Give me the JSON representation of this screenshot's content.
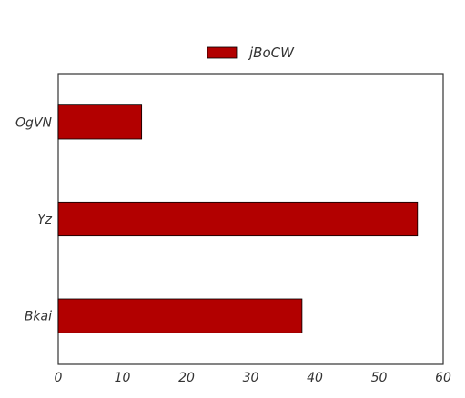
{
  "chart_data": {
    "type": "bar",
    "orientation": "horizontal",
    "categories": [
      "OgVN",
      "Yz",
      "Bkai"
    ],
    "series": [
      {
        "name": "jBoCW",
        "values": [
          13,
          56,
          38
        ],
        "color": "#b20000"
      }
    ],
    "xlim": [
      0,
      60
    ],
    "xticks": [
      0,
      10,
      20,
      30,
      40,
      50,
      60
    ],
    "title": "",
    "xlabel": "",
    "ylabel": "",
    "grid": false,
    "legend_position": "top-center"
  }
}
